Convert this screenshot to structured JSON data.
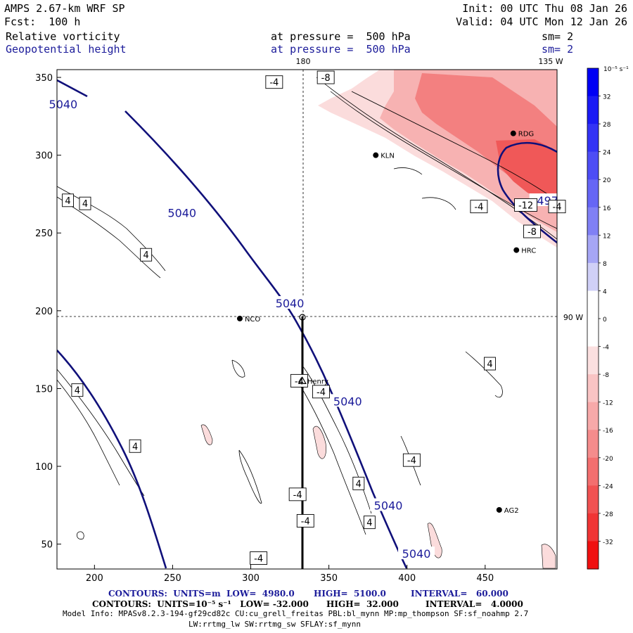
{
  "header": {
    "model": "AMPS 2.67-km WRF SP",
    "init": "Init: 00 UTC Thu 08 Jan 26",
    "fcst": "Fcst:  100 h",
    "valid": "Valid: 04 UTC Mon 12 Jan 26",
    "field1": "Relative vorticity",
    "field1_pressure": "at pressure =  500 hPa",
    "field1_sm": "sm= 2",
    "field2": "Geopotential height",
    "field2_pressure": "at pressure =  500 hPa",
    "field2_sm": "sm= 2"
  },
  "longitude_labels": {
    "top_180": "180",
    "top_135w": "135 W",
    "right_90w": "90 W"
  },
  "axes": {
    "x_ticks": [
      "200",
      "250",
      "300",
      "350",
      "400",
      "450"
    ],
    "y_ticks": [
      "350",
      "300",
      "250",
      "200",
      "150",
      "100",
      "50"
    ],
    "x_range": [
      176,
      496
    ],
    "y_range": [
      34,
      355
    ]
  },
  "stations": [
    {
      "name": "RDG",
      "x": 468,
      "y": 314
    },
    {
      "name": "KLN",
      "x": 380,
      "y": 300
    },
    {
      "name": "HRC",
      "x": 470,
      "y": 239
    },
    {
      "name": "NCO",
      "x": 293,
      "y": 195
    },
    {
      "name": "Henry",
      "x": 333,
      "y": 155
    },
    {
      "name": "AG2",
      "x": 459,
      "y": 72
    }
  ],
  "height_labels": [
    {
      "text": "5040",
      "x": 180,
      "y": 332
    },
    {
      "text": "5040",
      "x": 256,
      "y": 262
    },
    {
      "text": "5040",
      "x": 325,
      "y": 204
    },
    {
      "text": "5040",
      "x": 362,
      "y": 141
    },
    {
      "text": "5040",
      "x": 388,
      "y": 74
    },
    {
      "text": "5040",
      "x": 406,
      "y": 43
    },
    {
      "text": "497",
      "x": 490,
      "y": 270
    }
  ],
  "vort_labels": [
    {
      "text": "-4",
      "x": 315,
      "y": 347
    },
    {
      "text": "-8",
      "x": 348,
      "y": 350
    },
    {
      "text": "4",
      "x": 183,
      "y": 271
    },
    {
      "text": "4",
      "x": 194,
      "y": 269
    },
    {
      "text": "4",
      "x": 233,
      "y": 236
    },
    {
      "text": "-4",
      "x": 446,
      "y": 267
    },
    {
      "text": "-4",
      "x": 496,
      "y": 267
    },
    {
      "text": "-12",
      "x": 476,
      "y": 268
    },
    {
      "text": "-8",
      "x": 480,
      "y": 251
    },
    {
      "text": "4",
      "x": 453,
      "y": 166
    },
    {
      "text": "4",
      "x": 189,
      "y": 149
    },
    {
      "text": "4",
      "x": 226,
      "y": 113
    },
    {
      "text": "-4",
      "x": 331,
      "y": 155
    },
    {
      "text": "-4",
      "x": 345,
      "y": 148
    },
    {
      "text": "-4",
      "x": 403,
      "y": 104
    },
    {
      "text": "4",
      "x": 369,
      "y": 89
    },
    {
      "text": "4",
      "x": 376,
      "y": 64
    },
    {
      "text": "-4",
      "x": 330,
      "y": 82
    },
    {
      "text": "-4",
      "x": 335,
      "y": 65
    },
    {
      "text": "-4",
      "x": 305,
      "y": 41
    }
  ],
  "colorbar": {
    "unit": "10⁻⁵ s⁻¹",
    "labels": [
      "32",
      "28",
      "24",
      "20",
      "16",
      "12",
      "8",
      "4",
      "0",
      "-4",
      "-8",
      "-12",
      "-16",
      "-20",
      "-24",
      "-28",
      "-32"
    ],
    "colors": [
      "#0000f5",
      "#1a1af5",
      "#3333f5",
      "#4d4df5",
      "#6666f5",
      "#8080f5",
      "#a6a6f5",
      "#d0d0f7",
      "#ffffff",
      "#ffffff",
      "#fbe0e0",
      "#f9c4c4",
      "#f7a9a9",
      "#f58c8c",
      "#f36f6f",
      "#f15252",
      "#f03535",
      "#f01010"
    ]
  },
  "footer": {
    "line1": {
      "c1": "CONTOURS:  UNITS=m  LOW=  4980.0",
      "c2": "HIGH=  5100.0",
      "c3": "INTERVAL=   60.000"
    },
    "line2": {
      "c1": "CONTOURS:  UNITS=10⁻⁵ s⁻¹   LOW= -32.000",
      "c2": "HIGH=  32.000",
      "c3": "INTERVAL=   4.0000"
    },
    "line3": "Model Info: MPASv8.2.3-194-gf29cd82c CU:cu_grell_freitas PBL:bl_mynn MP:mp_thompson SF:sf_noahmp 2.7",
    "line4": "LW:rrtmg_lw SW:rrtmg_sw SFLAY:sf_mynn"
  }
}
